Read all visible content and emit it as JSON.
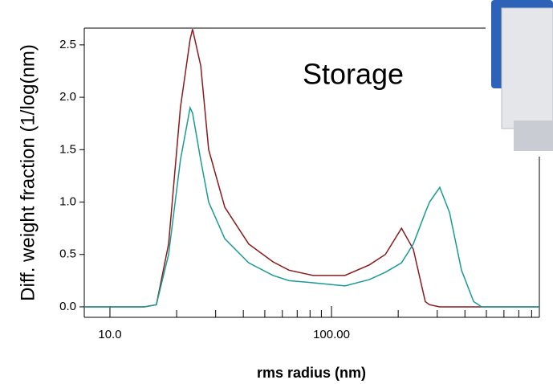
{
  "chart_data": {
    "type": "line",
    "annotation": "Storage",
    "x_label": "rms radius (nm)",
    "y_label": "Diff. weight fraction (1/log(nm)",
    "log_x": true,
    "x": [
      7.66,
      14.3,
      16.2,
      18.4,
      20.8,
      23.0,
      23.6,
      25.7,
      27.9,
      33.0,
      42.3,
      54.4,
      64.3,
      82.5,
      115,
      148,
      175,
      207,
      234,
      265,
      277,
      308,
      341,
      386,
      438,
      476,
      867
    ],
    "series": [
      {
        "color": "#8b1a1a",
        "values": [
          0,
          0,
          0.02,
          0.6,
          1.9,
          2.55,
          2.65,
          2.3,
          1.5,
          0.95,
          0.6,
          0.43,
          0.35,
          0.3,
          0.3,
          0.4,
          0.5,
          0.75,
          0.55,
          0.05,
          0.02,
          0,
          0,
          0,
          0,
          0,
          0
        ]
      },
      {
        "color": "#1a9a96",
        "values": [
          0,
          0,
          0.02,
          0.5,
          1.4,
          1.9,
          1.85,
          1.4,
          1.0,
          0.65,
          0.42,
          0.3,
          0.25,
          0.23,
          0.2,
          0.26,
          0.33,
          0.42,
          0.6,
          0.9,
          1.0,
          1.14,
          0.9,
          0.35,
          0.05,
          0,
          0
        ]
      }
    ],
    "xlim": [
      7.66,
      867
    ],
    "ylim": [
      -0.1,
      2.66
    ],
    "xticks": [
      {
        "value": 10,
        "label": "10.0"
      },
      {
        "value": 100,
        "label": "100.00"
      }
    ],
    "xminorticks": [
      20,
      30,
      40,
      50,
      60,
      70,
      80,
      90,
      200,
      300,
      400,
      500,
      600,
      700,
      800
    ],
    "yticks": [
      {
        "value": 0,
        "label": "0.0"
      },
      0.5,
      {
        "value": 1,
        "label": "1.0"
      },
      1.5,
      {
        "value": 2,
        "label": "2.0"
      },
      2.5
    ]
  }
}
